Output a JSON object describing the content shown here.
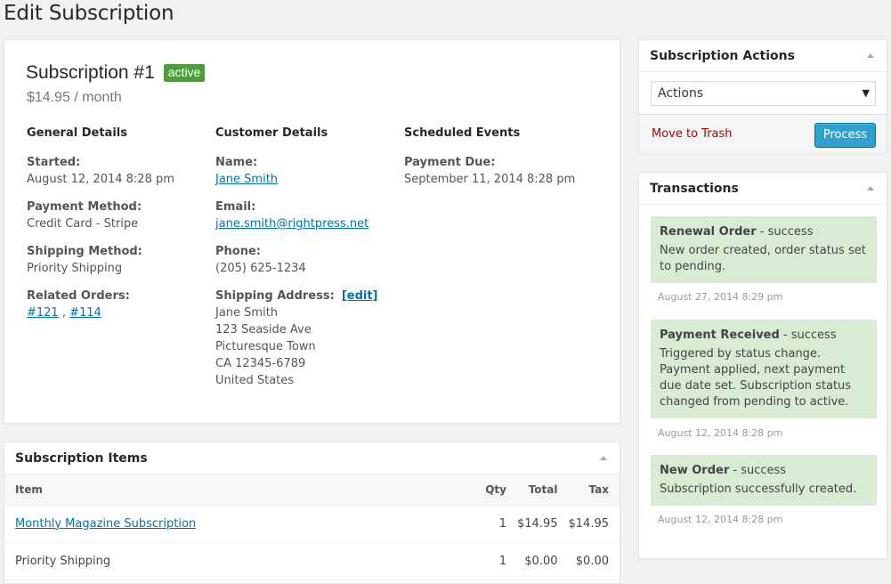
{
  "page": {
    "title": "Edit Subscription"
  },
  "subscription": {
    "title": "Subscription #1",
    "status": "active",
    "price": "$14.95 / month"
  },
  "general": {
    "heading": "General Details",
    "started_label": "Started:",
    "started_value": "August 12, 2014 8:28 pm",
    "payment_method_label": "Payment Method:",
    "payment_method_value": "Credit Card - Stripe",
    "shipping_method_label": "Shipping Method:",
    "shipping_method_value": "Priority Shipping",
    "related_orders_label": "Related Orders:",
    "related_orders": [
      "#121",
      "#114"
    ],
    "related_separator": " , "
  },
  "customer": {
    "heading": "Customer Details",
    "name_label": "Name:",
    "name_value": "Jane Smith",
    "email_label": "Email:",
    "email_value": "jane.smith@rightpress.net",
    "phone_label": "Phone:",
    "phone_value": "(205) 625-1234",
    "address_label": "Shipping Address:",
    "address_edit": "[edit]",
    "address_lines": [
      "Jane Smith",
      "123 Seaside Ave",
      "Picturesque Town",
      "CA 12345-6789",
      "United States"
    ]
  },
  "scheduled": {
    "heading": "Scheduled Events",
    "payment_due_label": "Payment Due:",
    "payment_due_value": "September 11, 2014 8:28 pm"
  },
  "items": {
    "heading": "Subscription Items",
    "columns": {
      "item": "Item",
      "qty": "Qty",
      "total": "Total",
      "tax": "Tax"
    },
    "rows": [
      {
        "item": "Monthly Magazine Subscription",
        "qty": "1",
        "total": "$14.95",
        "tax": "$14.95"
      },
      {
        "item": "Priority Shipping",
        "qty": "1",
        "total": "$0.00",
        "tax": "$0.00"
      }
    ]
  },
  "actions": {
    "heading": "Subscription Actions",
    "select_value": "Actions",
    "trash_label": "Move to Trash",
    "process_label": "Process"
  },
  "transactions": {
    "heading": "Transactions",
    "notes": [
      {
        "title": "Renewal Order",
        "status": " - success",
        "text": "New order created, order status set to pending.",
        "date": "August 27, 2014 8:29 pm"
      },
      {
        "title": "Payment Received",
        "status": " - success",
        "text": "Triggered by status change. Payment applied, next payment due date set. Subscription status changed from pending to active.",
        "date": "August 12, 2014 8:28 pm"
      },
      {
        "title": "New Order",
        "status": " - success",
        "text": "Subscription successfully created.",
        "date": "August 12, 2014 8:28 pm"
      }
    ]
  },
  "colors": {
    "badge_active": "#4a9f3a",
    "link": "#0073aa",
    "trash": "#aa0000",
    "process_button": "#2ea2cc",
    "note_background": "#d7ecd3"
  },
  "icons": {
    "select_arrow": "caret-down-icon",
    "box_toggle": "caret-up-icon"
  }
}
